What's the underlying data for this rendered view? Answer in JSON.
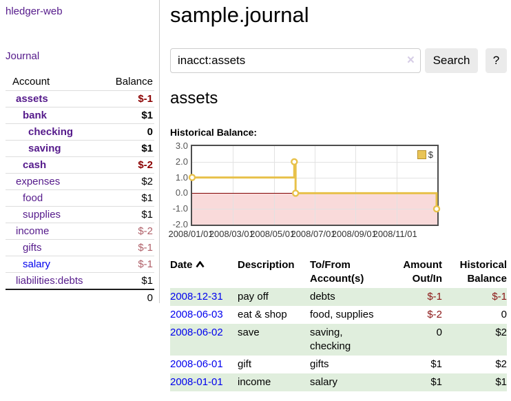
{
  "app_title": "hledger-web",
  "sidebar": {
    "journal_link": "Journal",
    "accounts": {
      "header_account": "Account",
      "header_balance": "Balance",
      "rows": [
        {
          "name": "assets",
          "balance": "$-1",
          "indent": 1,
          "bold": true,
          "balance_style": "neg-strong",
          "link_style": "purple"
        },
        {
          "name": "bank",
          "balance": "$1",
          "indent": 2,
          "bold": true,
          "balance_style": "pos",
          "link_style": "purple"
        },
        {
          "name": "checking",
          "balance": "0",
          "indent": 3,
          "bold": true,
          "balance_style": "pos",
          "link_style": "purple"
        },
        {
          "name": "saving",
          "balance": "$1",
          "indent": 3,
          "bold": true,
          "balance_style": "pos",
          "link_style": "purple"
        },
        {
          "name": "cash",
          "balance": "$-2",
          "indent": 2,
          "bold": true,
          "balance_style": "neg-strong",
          "link_style": "purple"
        },
        {
          "name": "expenses",
          "balance": "$2",
          "indent": 1,
          "bold": false,
          "balance_style": "pos",
          "link_style": "purple"
        },
        {
          "name": "food",
          "balance": "$1",
          "indent": 2,
          "bold": false,
          "balance_style": "pos",
          "link_style": "purple"
        },
        {
          "name": "supplies",
          "balance": "$1",
          "indent": 2,
          "bold": false,
          "balance_style": "pos",
          "link_style": "purple"
        },
        {
          "name": "income",
          "balance": "$-2",
          "indent": 1,
          "bold": false,
          "balance_style": "neg-soft",
          "link_style": "purple"
        },
        {
          "name": "gifts",
          "balance": "$-1",
          "indent": 2,
          "bold": false,
          "balance_style": "neg-soft",
          "link_style": "purple"
        },
        {
          "name": "salary",
          "balance": "$-1",
          "indent": 2,
          "bold": false,
          "balance_style": "neg-soft",
          "link_style": "blue"
        },
        {
          "name": "liabilities:debts",
          "balance": "$1",
          "indent": 1,
          "bold": false,
          "balance_style": "pos",
          "link_style": "purple"
        }
      ],
      "total": "0"
    }
  },
  "main": {
    "title": "sample.journal",
    "search": {
      "value": "inacct:assets",
      "clear_icon": "×",
      "search_button": "Search",
      "help_button": "?"
    },
    "account_title": "assets",
    "chart_heading": "Historical Balance:"
  },
  "chart_data": {
    "type": "line",
    "style": "step-after",
    "title": "Historical Balance:",
    "series": [
      {
        "name": "$",
        "points": [
          {
            "date": "2008-01-01",
            "value": 1
          },
          {
            "date": "2008-06-01",
            "value": 2
          },
          {
            "date": "2008-06-03",
            "value": 0
          },
          {
            "date": "2008-12-31",
            "value": -1
          }
        ]
      }
    ],
    "ylim": [
      -2,
      3
    ],
    "ytick_values": [
      3,
      2,
      1,
      0,
      -1,
      -2
    ],
    "ytick_labels": [
      "3.0",
      "2.0",
      "1.0",
      "0.0",
      "-1.0",
      "-2.0"
    ],
    "xtick_labels": [
      "2008/01/01",
      "2008/03/01",
      "2008/05/01",
      "2008/07/01",
      "2008/09/01",
      "2008/11/01"
    ],
    "x_start": "2008-01-01",
    "x_end": "2009-01-01",
    "grid": true,
    "legend": {
      "label": "$",
      "position": "top-right"
    },
    "colors": {
      "line": "#e8c14a",
      "marker_fill": "#ffffff",
      "negative_region": "#f9dada",
      "zero_line": "#7f0000"
    }
  },
  "register": {
    "headers": {
      "date": "Date",
      "description": "Description",
      "accounts": "To/From Account(s)",
      "amount": "Amount Out/In",
      "balance": "Historical Balance"
    },
    "rows": [
      {
        "date": "2008-12-31",
        "description": "pay off",
        "accounts": "debts",
        "amount": "$-1",
        "amount_negative": true,
        "balance": "$-1",
        "balance_negative": true
      },
      {
        "date": "2008-06-03",
        "description": "eat & shop",
        "accounts": "food, supplies",
        "amount": "$-2",
        "amount_negative": true,
        "balance": "0",
        "balance_negative": false
      },
      {
        "date": "2008-06-02",
        "description": "save",
        "accounts": "saving, checking",
        "amount": "0",
        "amount_negative": false,
        "balance": "$2",
        "balance_negative": false
      },
      {
        "date": "2008-06-01",
        "description": "gift",
        "accounts": "gifts",
        "amount": "$1",
        "amount_negative": false,
        "balance": "$2",
        "balance_negative": false
      },
      {
        "date": "2008-01-01",
        "description": "income",
        "accounts": "salary",
        "amount": "$1",
        "amount_negative": false,
        "balance": "$1",
        "balance_negative": false
      }
    ]
  }
}
